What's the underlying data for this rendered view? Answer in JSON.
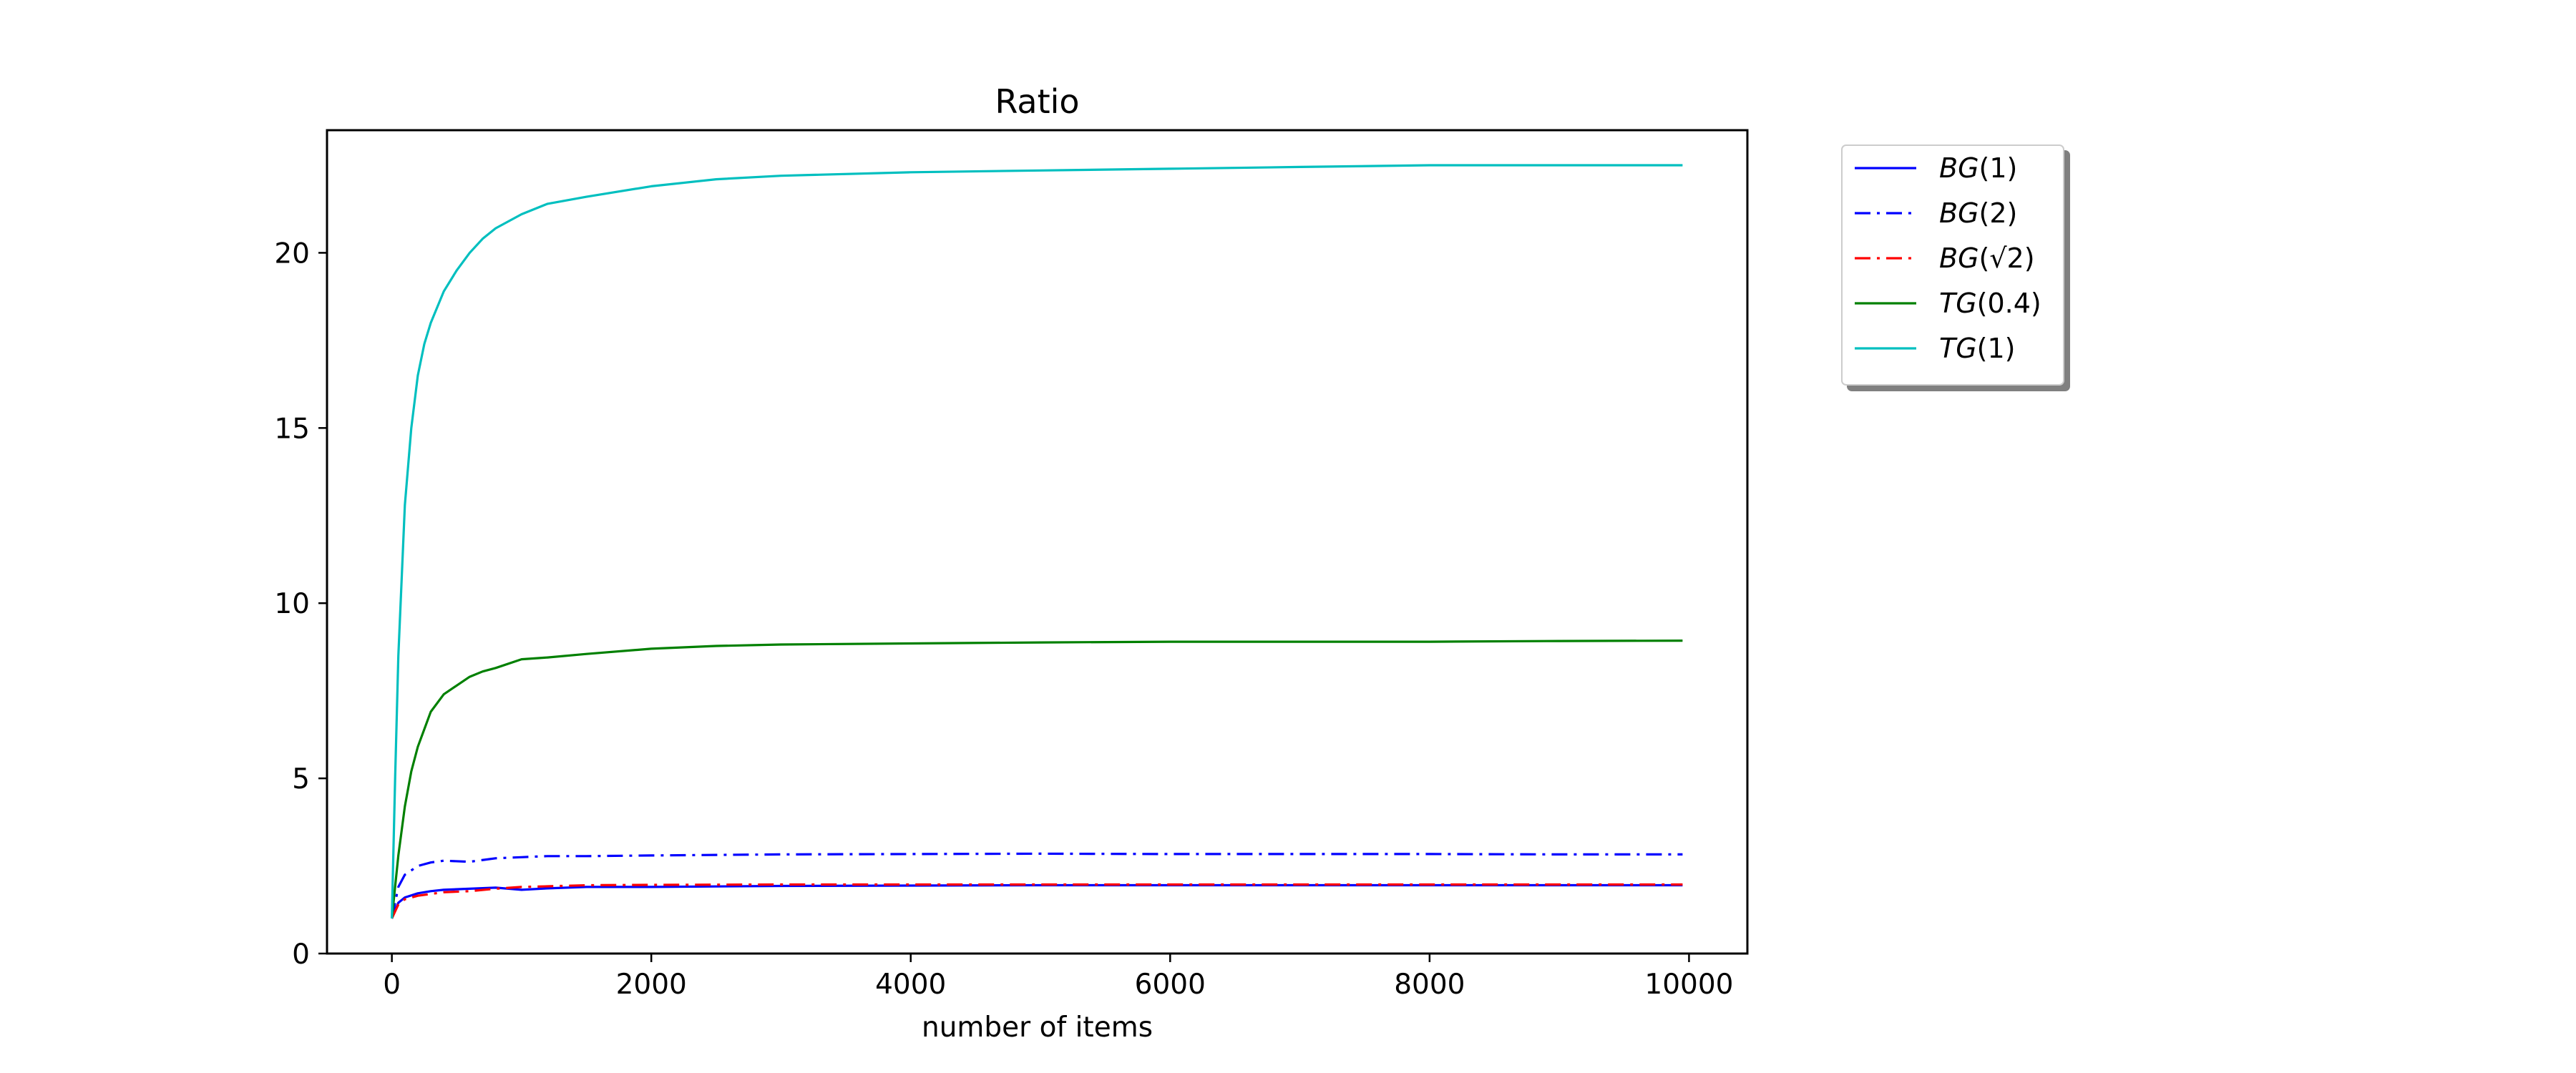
{
  "chart_data": {
    "type": "line",
    "title": "Ratio",
    "xlabel": "number of items",
    "ylabel": "",
    "xlim": [
      -500,
      10450
    ],
    "ylim": [
      0,
      23.5
    ],
    "xticks": [
      0,
      2000,
      4000,
      6000,
      8000,
      10000
    ],
    "xtick_labels": [
      "0",
      "2000",
      "4000",
      "6000",
      "8000",
      "10000"
    ],
    "yticks": [
      0,
      5,
      10,
      15,
      20
    ],
    "ytick_labels": [
      "0",
      "5",
      "10",
      "15",
      "20"
    ],
    "grid": false,
    "legend_position": "outside-top-right",
    "series": [
      {
        "name": "BG(1)",
        "legend_math": {
          "italic": "BG",
          "rest": "(1)"
        },
        "color": "#0000ff",
        "dash": "solid",
        "x": [
          0,
          50,
          100,
          200,
          300,
          400,
          600,
          800,
          1000,
          1200,
          1500,
          2000,
          3000,
          4000,
          5000,
          6000,
          7000,
          8000,
          9000,
          9950
        ],
        "y": [
          1.0,
          1.45,
          1.6,
          1.72,
          1.78,
          1.82,
          1.85,
          1.88,
          1.82,
          1.86,
          1.9,
          1.9,
          1.93,
          1.94,
          1.95,
          1.95,
          1.95,
          1.95,
          1.95,
          1.95
        ]
      },
      {
        "name": "BG(2)",
        "legend_math": {
          "italic": "BG",
          "rest": "(2)"
        },
        "color": "#0000ff",
        "dash": "dashdot",
        "x": [
          0,
          50,
          100,
          200,
          300,
          400,
          600,
          800,
          1000,
          1200,
          1500,
          2000,
          3000,
          4000,
          5000,
          6000,
          7000,
          8000,
          9000,
          9950
        ],
        "y": [
          1.0,
          1.9,
          2.25,
          2.5,
          2.6,
          2.65,
          2.62,
          2.72,
          2.75,
          2.78,
          2.78,
          2.8,
          2.83,
          2.84,
          2.85,
          2.84,
          2.84,
          2.84,
          2.83,
          2.83
        ]
      },
      {
        "name": "BG(√2)",
        "legend_math": {
          "italic": "BG",
          "rest": "(√2)"
        },
        "color": "#ff0000",
        "dash": "dashdot",
        "x": [
          0,
          50,
          100,
          200,
          300,
          400,
          600,
          800,
          1000,
          1200,
          1500,
          2000,
          3000,
          4000,
          5000,
          6000,
          7000,
          8000,
          9000,
          9950
        ],
        "y": [
          1.0,
          1.4,
          1.55,
          1.65,
          1.7,
          1.75,
          1.78,
          1.85,
          1.9,
          1.92,
          1.95,
          1.96,
          1.97,
          1.97,
          1.97,
          1.97,
          1.97,
          1.97,
          1.97,
          1.97
        ]
      },
      {
        "name": "TG(0.4)",
        "legend_math": {
          "italic": "TG",
          "rest": "(0.4)"
        },
        "color": "#008000",
        "dash": "solid",
        "x": [
          0,
          50,
          100,
          150,
          200,
          300,
          400,
          500,
          600,
          700,
          800,
          1000,
          1200,
          1500,
          2000,
          2500,
          3000,
          4000,
          5000,
          6000,
          7000,
          8000,
          9000,
          9950
        ],
        "y": [
          1.0,
          2.8,
          4.2,
          5.2,
          5.9,
          6.9,
          7.4,
          7.65,
          7.9,
          8.05,
          8.15,
          8.4,
          8.45,
          8.55,
          8.7,
          8.78,
          8.82,
          8.85,
          8.88,
          8.9,
          8.9,
          8.9,
          8.92,
          8.93
        ]
      },
      {
        "name": "TG(1)",
        "legend_math": {
          "italic": "TG",
          "rest": "(1)"
        },
        "color": "#00bfbf",
        "dash": "solid",
        "x": [
          0,
          25,
          50,
          100,
          150,
          200,
          250,
          300,
          400,
          500,
          600,
          700,
          800,
          1000,
          1200,
          1500,
          2000,
          2500,
          3000,
          4000,
          5000,
          6000,
          7000,
          8000,
          9000,
          9950
        ],
        "y": [
          1.0,
          5.0,
          8.5,
          12.8,
          15.0,
          16.5,
          17.4,
          18.0,
          18.9,
          19.5,
          20.0,
          20.4,
          20.7,
          21.1,
          21.4,
          21.6,
          21.9,
          22.1,
          22.2,
          22.3,
          22.35,
          22.4,
          22.45,
          22.5,
          22.5,
          22.5
        ]
      }
    ]
  }
}
